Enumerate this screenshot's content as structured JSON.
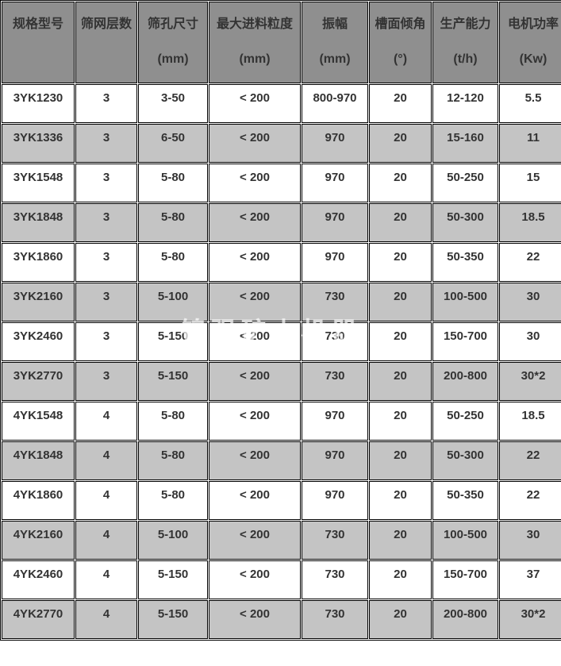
{
  "watermark": {
    "text": "锦强矿山机器"
  },
  "colors": {
    "header_bg": "#8f8f8f",
    "stripe_row_bg": "#c4c4c4",
    "plain_row_bg": "#ffffff",
    "border": "#000000",
    "text": "#333333",
    "watermark_text": "#ffffff"
  },
  "table": {
    "columns": [
      {
        "label": "规格型号",
        "unit": ""
      },
      {
        "label": "筛网层数",
        "unit": ""
      },
      {
        "label": "筛孔尺寸",
        "unit": "(mm)"
      },
      {
        "label": "最大进料粒度",
        "unit": "(mm)"
      },
      {
        "label": "振幅",
        "unit": "(mm)"
      },
      {
        "label": "槽面倾角",
        "unit": "(°)"
      },
      {
        "label": "生产能力",
        "unit": "(t/h)"
      },
      {
        "label": "电机功率",
        "unit": "(Kw)"
      }
    ],
    "rows": [
      [
        "3YK1230",
        "3",
        "3-50",
        "< 200",
        "800-970",
        "20",
        "12-120",
        "5.5"
      ],
      [
        "3YK1336",
        "3",
        "6-50",
        "< 200",
        "970",
        "20",
        "15-160",
        "11"
      ],
      [
        "3YK1548",
        "3",
        "5-80",
        "< 200",
        "970",
        "20",
        "50-250",
        "15"
      ],
      [
        "3YK1848",
        "3",
        "5-80",
        "< 200",
        "970",
        "20",
        "50-300",
        "18.5"
      ],
      [
        "3YK1860",
        "3",
        "5-80",
        "< 200",
        "970",
        "20",
        "50-350",
        "22"
      ],
      [
        "3YK2160",
        "3",
        "5-100",
        "< 200",
        "730",
        "20",
        "100-500",
        "30"
      ],
      [
        "3YK2460",
        "3",
        "5-150",
        "< 200",
        "730",
        "20",
        "150-700",
        "30"
      ],
      [
        "3YK2770",
        "3",
        "5-150",
        "< 200",
        "730",
        "20",
        "200-800",
        "30*2"
      ],
      [
        "4YK1548",
        "4",
        "5-80",
        "< 200",
        "970",
        "20",
        "50-250",
        "18.5"
      ],
      [
        "4YK1848",
        "4",
        "5-80",
        "< 200",
        "970",
        "20",
        "50-300",
        "22"
      ],
      [
        "4YK1860",
        "4",
        "5-80",
        "< 200",
        "970",
        "20",
        "50-350",
        "22"
      ],
      [
        "4YK2160",
        "4",
        "5-100",
        "< 200",
        "730",
        "20",
        "100-500",
        "30"
      ],
      [
        "4YK2460",
        "4",
        "5-150",
        "< 200",
        "730",
        "20",
        "150-700",
        "37"
      ],
      [
        "4YK2770",
        "4",
        "5-150",
        "< 200",
        "730",
        "20",
        "200-800",
        "30*2"
      ]
    ]
  }
}
